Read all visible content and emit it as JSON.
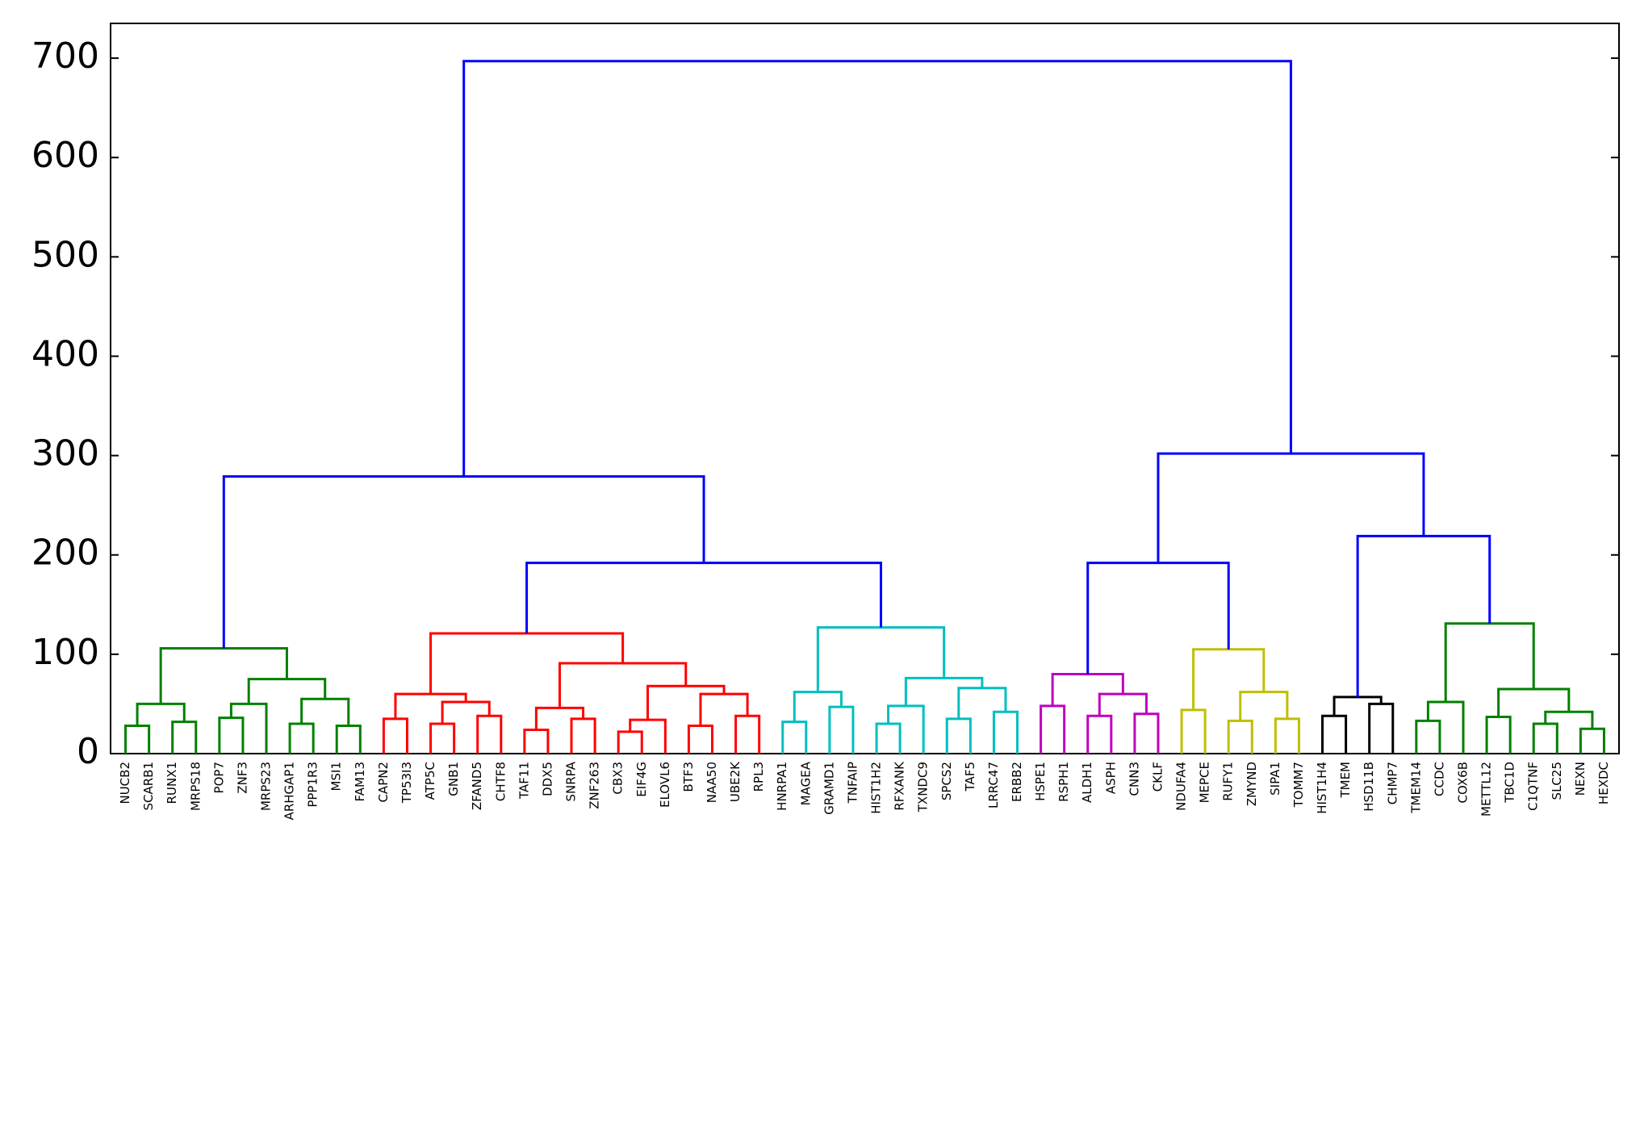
{
  "chart_data": {
    "type": "dendrogram",
    "ylim": [
      0,
      735
    ],
    "yticks": [
      0,
      100,
      200,
      300,
      400,
      500,
      600,
      700
    ],
    "link_color": "#0000ff",
    "tree": {
      "height": 697,
      "children": [
        {
          "height": 279,
          "children": [
            {
              "height": 106,
              "color": "#008000",
              "children": [
                {
                  "height": 50,
                  "children": [
                    {
                      "height": 28,
                      "children": [
                        "NUCB2",
                        "SCARB1"
                      ]
                    },
                    {
                      "height": 32,
                      "children": [
                        "RUNX1",
                        "MRPS18"
                      ]
                    }
                  ]
                },
                {
                  "height": 75,
                  "children": [
                    {
                      "height": 50,
                      "children": [
                        {
                          "height": 36,
                          "children": [
                            "POP7",
                            "ZNF3"
                          ]
                        },
                        "MRPS23"
                      ]
                    },
                    {
                      "height": 55,
                      "children": [
                        {
                          "height": 30,
                          "children": [
                            "ARHGAP1",
                            "PPP1R3"
                          ]
                        },
                        {
                          "height": 28,
                          "children": [
                            "MSI1",
                            "FAM13"
                          ]
                        }
                      ]
                    }
                  ]
                }
              ]
            },
            {
              "height": 192,
              "children": [
                {
                  "height": 121,
                  "color": "#ff0000",
                  "children": [
                    {
                      "height": 60,
                      "children": [
                        {
                          "height": 35,
                          "children": [
                            "CAPN2",
                            "TP53I3"
                          ]
                        },
                        {
                          "height": 52,
                          "children": [
                            {
                              "height": 30,
                              "children": [
                                "ATP5C",
                                "GNB1"
                              ]
                            },
                            {
                              "height": 38,
                              "children": [
                                "ZFAND5",
                                "CHTF8"
                              ]
                            }
                          ]
                        }
                      ]
                    },
                    {
                      "height": 91,
                      "children": [
                        {
                          "height": 46,
                          "children": [
                            {
                              "height": 24,
                              "children": [
                                "TAF11",
                                "DDX5"
                              ]
                            },
                            {
                              "height": 35,
                              "children": [
                                "SNRPA",
                                "ZNF263"
                              ]
                            }
                          ]
                        },
                        {
                          "height": 68,
                          "children": [
                            {
                              "height": 34,
                              "children": [
                                {
                                  "height": 22,
                                  "children": [
                                    "CBX3",
                                    "EIF4G"
                                  ]
                                },
                                "ELOVL6"
                              ]
                            },
                            {
                              "height": 60,
                              "children": [
                                {
                                  "height": 28,
                                  "children": [
                                    "BTF3",
                                    "NAA50"
                                  ]
                                },
                                {
                                  "height": 38,
                                  "children": [
                                    "UBE2K",
                                    "RPL3"
                                  ]
                                }
                              ]
                            }
                          ]
                        }
                      ]
                    }
                  ]
                },
                {
                  "height": 127,
                  "color": "#00bfbf",
                  "children": [
                    {
                      "height": 62,
                      "children": [
                        {
                          "height": 32,
                          "children": [
                            "HNRPA1",
                            "MAGEA"
                          ]
                        },
                        {
                          "height": 47,
                          "children": [
                            "GRAMD1",
                            "TNFAIP"
                          ]
                        }
                      ]
                    },
                    {
                      "height": 76,
                      "children": [
                        {
                          "height": 48,
                          "children": [
                            {
                              "height": 30,
                              "children": [
                                "HIST1H2",
                                "RFXANK"
                              ]
                            },
                            "TXNDC9"
                          ]
                        },
                        {
                          "height": 66,
                          "children": [
                            {
                              "height": 35,
                              "children": [
                                "SPCS2",
                                "TAF5"
                              ]
                            },
                            {
                              "height": 42,
                              "children": [
                                "LRRC47",
                                "ERBB2"
                              ]
                            }
                          ]
                        }
                      ]
                    }
                  ]
                }
              ]
            }
          ]
        },
        {
          "height": 302,
          "children": [
            {
              "height": 192,
              "children": [
                {
                  "height": 80,
                  "color": "#bf00bf",
                  "children": [
                    {
                      "height": 48,
                      "children": [
                        "HSPE1",
                        "RSPH1"
                      ]
                    },
                    {
                      "height": 60,
                      "children": [
                        {
                          "height": 38,
                          "children": [
                            "ALDH1",
                            "ASPH"
                          ]
                        },
                        {
                          "height": 40,
                          "children": [
                            "CNN3",
                            "CKLF"
                          ]
                        }
                      ]
                    }
                  ]
                },
                {
                  "height": 105,
                  "color": "#bfbf00",
                  "children": [
                    {
                      "height": 44,
                      "children": [
                        "NDUFA4",
                        "MEPCE"
                      ]
                    },
                    {
                      "height": 62,
                      "children": [
                        {
                          "height": 33,
                          "children": [
                            "RUFY1",
                            "ZMYND"
                          ]
                        },
                        {
                          "height": 35,
                          "children": [
                            "SIPA1",
                            "TOMM7"
                          ]
                        }
                      ]
                    }
                  ]
                }
              ]
            },
            {
              "height": 219,
              "children": [
                {
                  "height": 57,
                  "color": "#000000",
                  "children": [
                    {
                      "height": 38,
                      "children": [
                        "HIST1H4",
                        "TMEM"
                      ]
                    },
                    {
                      "height": 50,
                      "children": [
                        "HSD11B",
                        "CHMP7"
                      ]
                    }
                  ]
                },
                {
                  "height": 131,
                  "color": "#008000",
                  "children": [
                    {
                      "height": 52,
                      "children": [
                        {
                          "height": 33,
                          "children": [
                            "TMEM14",
                            "CCDC"
                          ]
                        },
                        "COX6B"
                      ]
                    },
                    {
                      "height": 65,
                      "children": [
                        {
                          "height": 37,
                          "children": [
                            "METTL12",
                            "TBC1D"
                          ]
                        },
                        {
                          "height": 42,
                          "children": [
                            {
                              "height": 30,
                              "children": [
                                "C1QTNF",
                                "SLC25"
                              ]
                            },
                            {
                              "height": 25,
                              "children": [
                                "NEXN",
                                "HEXDC"
                              ]
                            }
                          ]
                        }
                      ]
                    }
                  ]
                }
              ]
            }
          ]
        }
      ]
    }
  }
}
